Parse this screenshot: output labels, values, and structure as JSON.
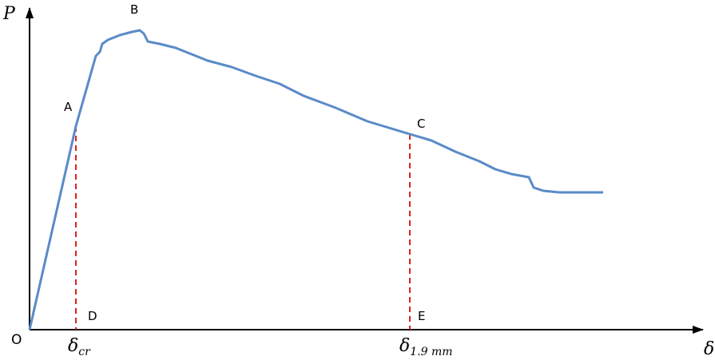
{
  "axes": {
    "y_label": "P",
    "x_label": "δ",
    "origin_label": "O"
  },
  "points": {
    "A": "A",
    "B": "B",
    "C": "C",
    "D": "D",
    "E": "E"
  },
  "x_markers": [
    {
      "symbol": "δ",
      "subscript": "cr"
    },
    {
      "symbol": "δ",
      "subscript": "1.9 mm"
    }
  ]
}
